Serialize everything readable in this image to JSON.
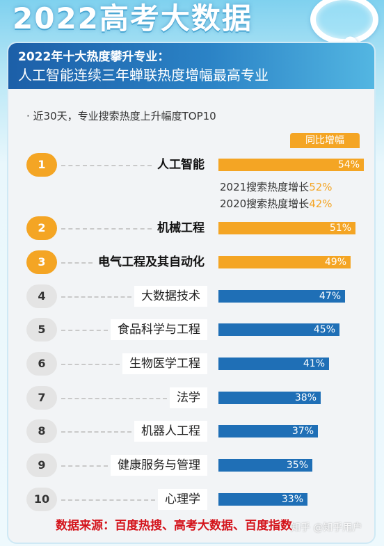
{
  "headline": "2022高考大数据",
  "header": {
    "line1": "2022年十大热度攀升专业：",
    "line2": "人工智能连续三年蝉联热度增幅最高专业"
  },
  "subtitle": "· 近30天，专业搜索热度上升幅度TOP10",
  "legend_tag": "同比增幅",
  "notes": {
    "n2021_prefix": "2021搜索热度增长",
    "n2021_value": "52%",
    "n2020_prefix": "2020搜索热度增长",
    "n2020_value": "42%"
  },
  "source": "数据来源：百度热搜、高考大数据、百度指数",
  "watermark": "知乎 @知乎用户",
  "colors": {
    "top3": "#f4a524",
    "rest": "#1f6fb6",
    "source": "#d4131b"
  },
  "chart_data": {
    "type": "bar",
    "title": "近30天，专业搜索热度上升幅度TOP10",
    "ylabel": "同比增幅",
    "ranks": [
      "1",
      "2",
      "3",
      "4",
      "5",
      "6",
      "7",
      "8",
      "9",
      "10"
    ],
    "categories": [
      "人工智能",
      "机械工程",
      "电气工程及其自动化",
      "大数据技术",
      "食品科学与工程",
      "生物医学工程",
      "法学",
      "机器人工程",
      "健康服务与管理",
      "心理学"
    ],
    "values": [
      54,
      51,
      49,
      47,
      45,
      41,
      38,
      37,
      35,
      33
    ],
    "value_labels": [
      "54%",
      "51%",
      "49%",
      "47%",
      "45%",
      "41%",
      "38%",
      "37%",
      "35%",
      "33%"
    ],
    "extra": {
      "2021": 52,
      "2020": 42
    }
  }
}
